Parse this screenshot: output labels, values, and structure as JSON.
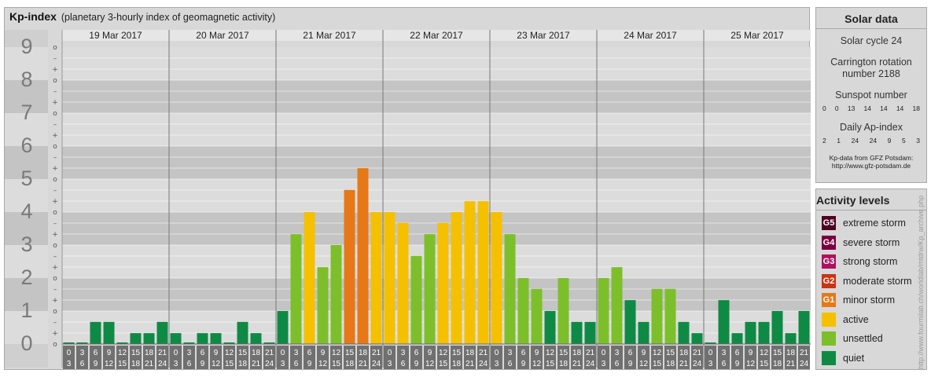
{
  "title": "Kp-index",
  "subtitle": "(planetary 3-hourly index of geomagnetic activity)",
  "chart_data": {
    "type": "bar",
    "days": [
      "19 Mar 2017",
      "20 Mar 2017",
      "21 Mar 2017",
      "22 Mar 2017",
      "23 Mar 2017",
      "24 Mar 2017",
      "25 Mar 2017"
    ],
    "interval_labels": [
      [
        "0",
        "3"
      ],
      [
        "3",
        "6"
      ],
      [
        "6",
        "9"
      ],
      [
        "9",
        "12"
      ],
      [
        "12",
        "15"
      ],
      [
        "15",
        "18"
      ],
      [
        "18",
        "21"
      ],
      [
        "21",
        "24"
      ]
    ],
    "y_ticks": [
      "0",
      "1",
      "2",
      "3",
      "4",
      "5",
      "6",
      "7",
      "8",
      "9"
    ],
    "sub_ticks": [
      "–",
      "o",
      "+"
    ],
    "ylim": [
      0,
      9
    ],
    "values": [
      [
        0,
        0,
        0.67,
        0.67,
        0,
        0.33,
        0.33,
        0.67
      ],
      [
        0.33,
        0,
        0.33,
        0.33,
        0,
        0.67,
        0.33,
        0
      ],
      [
        1,
        3.33,
        4,
        2.33,
        3,
        4.67,
        5.33,
        4
      ],
      [
        4,
        3.67,
        2.67,
        3.33,
        3.67,
        4,
        4.33,
        4.33
      ],
      [
        4,
        3.33,
        2,
        1.67,
        1,
        2,
        0.67,
        0.67
      ],
      [
        2,
        2.33,
        1.33,
        0.67,
        1.67,
        1.67,
        0.67,
        0.33
      ],
      [
        0,
        1.33,
        0.33,
        0.67,
        0.67,
        1,
        0.33,
        1
      ]
    ],
    "colors": {
      "quiet": "#0e8a45",
      "unsettled": "#7dbf2a",
      "active": "#f5c000",
      "minor": "#e67817"
    },
    "grid": true
  },
  "solar": {
    "title": "Solar data",
    "cycle": "Solar cycle 24",
    "carrington_line1": "Carrington rotation",
    "carrington_line2": "number 2188",
    "sunspot_label": "Sunspot number",
    "sunspot_values": [
      "0",
      "0",
      "13",
      "14",
      "14",
      "14",
      "18"
    ],
    "ap_label": "Daily Ap-index",
    "ap_values": [
      "2",
      "1",
      "24",
      "24",
      "9",
      "5",
      "3"
    ],
    "credit_line1": "Kp-data from GFZ Potsdam:",
    "credit_line2": "http://www.gfz-potsdam.de"
  },
  "activity": {
    "title": "Activity levels",
    "levels": [
      {
        "code": "G5",
        "label": "extreme storm",
        "color": "#4d0022"
      },
      {
        "code": "G4",
        "label": "severe storm",
        "color": "#7a0040"
      },
      {
        "code": "G3",
        "label": "strong storm",
        "color": "#b0105e"
      },
      {
        "code": "G2",
        "label": "moderate storm",
        "color": "#cc3311"
      },
      {
        "code": "G1",
        "label": "minor storm",
        "color": "#e67817"
      },
      {
        "code": "",
        "label": "active",
        "color": "#f5c000"
      },
      {
        "code": "",
        "label": "unsettled",
        "color": "#7dbf2a"
      },
      {
        "code": "",
        "label": "quiet",
        "color": "#0e8a45"
      }
    ]
  },
  "watermark": "http://www.fourmilab.ch/worldlab/mtdrw/Kp_archive.php"
}
